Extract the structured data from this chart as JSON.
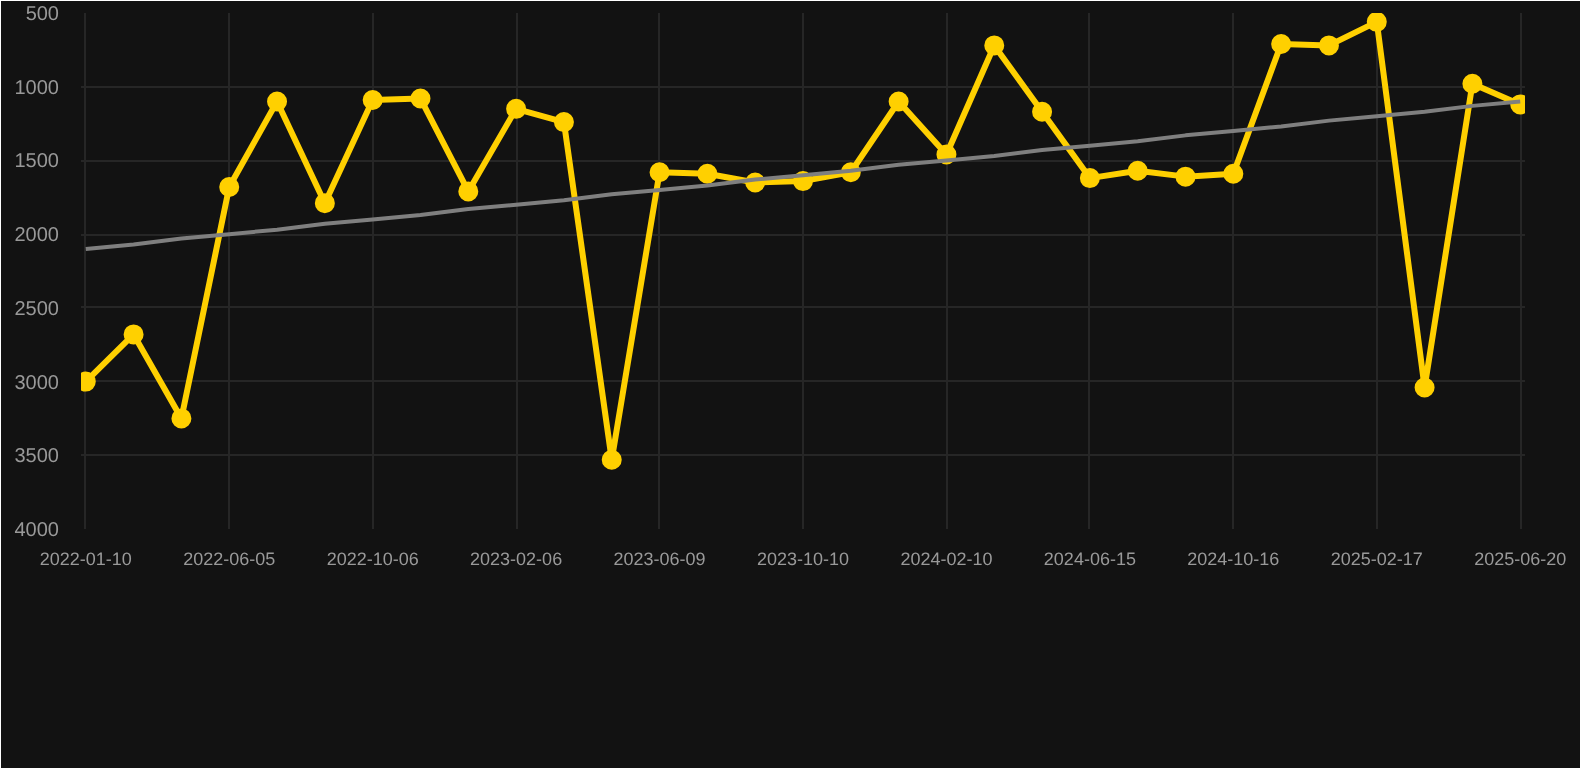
{
  "chart_data": {
    "type": "line",
    "categories": [
      "2022-01-10",
      null,
      null,
      "2022-06-05",
      null,
      null,
      "2022-10-06",
      null,
      null,
      "2023-02-06",
      null,
      null,
      "2023-06-09",
      null,
      null,
      "2023-10-10",
      null,
      null,
      "2024-02-10",
      null,
      null,
      "2024-06-15",
      null,
      null,
      "2024-10-16",
      null,
      null,
      "2025-02-17",
      null,
      null,
      "2025-06-20"
    ],
    "series": [
      {
        "color": "#ffd000",
        "values": [
          3000,
          2680,
          3250,
          1680,
          1100,
          1790,
          1090,
          1080,
          1710,
          1150,
          1240,
          3530,
          1580,
          1590,
          1650,
          1640,
          1580,
          1100,
          1460,
          720,
          1170,
          1620,
          1570,
          1610,
          1590,
          710,
          720,
          560,
          3040,
          980,
          1120
        ]
      },
      {
        "type": "line",
        "color": "#7f7f7f",
        "marker": "none",
        "values": [
          2100,
          2070,
          2030,
          2000,
          1970,
          1930,
          1900,
          1870,
          1830,
          1800,
          1770,
          1730,
          1700,
          1670,
          1630,
          1600,
          1570,
          1530,
          1500,
          1470,
          1430,
          1400,
          1370,
          1330,
          1300,
          1270,
          1230,
          1200,
          1170,
          1130,
          1100
        ]
      }
    ],
    "ylim": [
      4000,
      500
    ],
    "yticks": [
      500,
      1000,
      1500,
      2000,
      2500,
      3000,
      3500,
      4000
    ],
    "grid": true,
    "marker": "circle",
    "line_style": "solid"
  }
}
